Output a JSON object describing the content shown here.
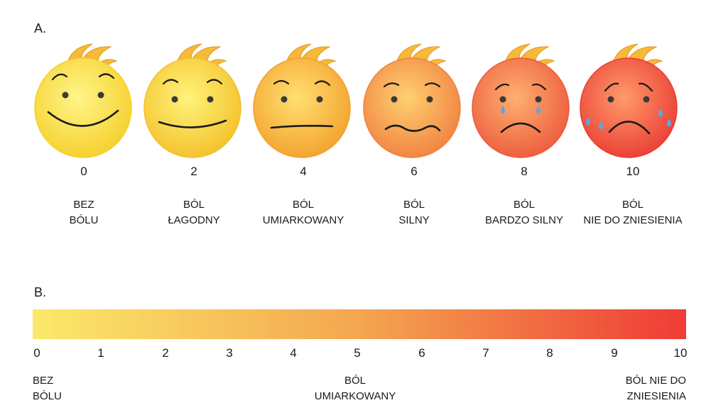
{
  "section_a": {
    "label": "A."
  },
  "section_b": {
    "label": "B."
  },
  "faces": [
    {
      "number": "0",
      "line1": "BEZ",
      "line2": "BÓLU",
      "color_center": "#fff58a",
      "color_edge": "#f5cf2a",
      "expression": "big-smile",
      "tears": 0
    },
    {
      "number": "2",
      "line1": "BÓL",
      "line2": "ŁAGODNY",
      "color_center": "#fff37a",
      "color_edge": "#f3c02a",
      "expression": "smile",
      "tears": 0
    },
    {
      "number": "4",
      "line1": "BÓL",
      "line2": "UMIARKOWANY",
      "color_center": "#ffe070",
      "color_edge": "#f3a02c",
      "expression": "neutral",
      "tears": 0
    },
    {
      "number": "6",
      "line1": "BÓL",
      "line2": "SILNY",
      "color_center": "#ffd070",
      "color_edge": "#f08040",
      "expression": "wavy",
      "tears": 0
    },
    {
      "number": "8",
      "line1": "BÓL",
      "line2": "BARDZO SILNY",
      "color_center": "#ffb070",
      "color_edge": "#ec5a3c",
      "expression": "frown",
      "tears": 2
    },
    {
      "number": "10",
      "line1": "BÓL",
      "line2": "NIE DO ZNIESIENIA",
      "color_center": "#ff9a6a",
      "color_edge": "#ea3c34",
      "expression": "big-frown",
      "tears": 4
    }
  ],
  "scale": {
    "gradient_start": "#fbe96a",
    "gradient_mid": "#f4a650",
    "gradient_end": "#ef3b36",
    "ticks": [
      "0",
      "1",
      "2",
      "3",
      "4",
      "5",
      "6",
      "7",
      "8",
      "9",
      "10"
    ],
    "left_caption": {
      "line1": "BEZ",
      "line2": "BÓLU"
    },
    "mid_caption": {
      "line1": "BÓL",
      "line2": "UMIARKOWANY"
    },
    "right_caption": {
      "line1": "BÓL NIE DO",
      "line2": "ZNIESIENIA"
    }
  },
  "colors": {
    "hair": "#f6b93a",
    "eye": "#3a3a3a",
    "mouth": "#1a1a1a",
    "tear": "#5aa8e0"
  }
}
